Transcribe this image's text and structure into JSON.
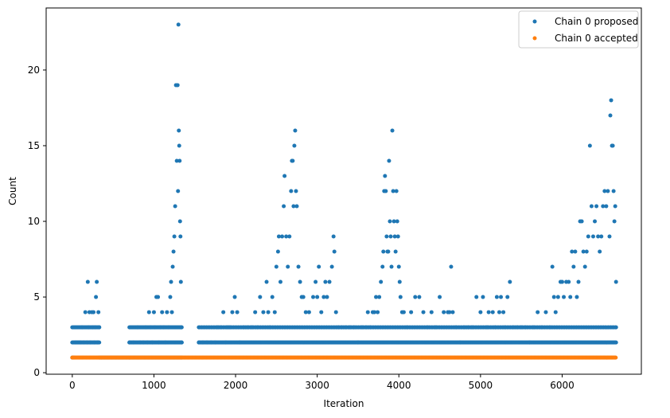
{
  "chart_data": {
    "type": "scatter",
    "xlabel": "Iteration",
    "ylabel": "Count",
    "xlim": [
      -320,
      6970
    ],
    "ylim": [
      -0.1,
      24.1
    ],
    "xticks": [
      0,
      1000,
      2000,
      3000,
      4000,
      5000,
      6000
    ],
    "yticks": [
      0,
      5,
      10,
      15,
      20
    ],
    "grid": false,
    "legend_position": "top-right",
    "series": [
      {
        "name": "Chain 0 proposed",
        "color": "#1f77b4",
        "points": [
          [
            0,
            1
          ],
          [
            20,
            1
          ],
          [
            40,
            2
          ],
          [
            60,
            2
          ],
          [
            80,
            2
          ],
          [
            100,
            2
          ],
          [
            120,
            3
          ],
          [
            140,
            2
          ],
          [
            160,
            4
          ],
          [
            180,
            2
          ],
          [
            190,
            6
          ],
          [
            200,
            3
          ],
          [
            210,
            4
          ],
          [
            220,
            2
          ],
          [
            240,
            4
          ],
          [
            250,
            3
          ],
          [
            260,
            4
          ],
          [
            270,
            2
          ],
          [
            280,
            3
          ],
          [
            290,
            5
          ],
          [
            300,
            6
          ],
          [
            310,
            2
          ],
          [
            320,
            4
          ],
          [
            330,
            3
          ],
          [
            700,
            2
          ],
          [
            750,
            2
          ],
          [
            800,
            3
          ],
          [
            830,
            2
          ],
          [
            870,
            2
          ],
          [
            900,
            3
          ],
          [
            920,
            2
          ],
          [
            940,
            4
          ],
          [
            960,
            3
          ],
          [
            980,
            2
          ],
          [
            1000,
            4
          ],
          [
            1010,
            3
          ],
          [
            1030,
            5
          ],
          [
            1050,
            5
          ],
          [
            1060,
            2
          ],
          [
            1080,
            3
          ],
          [
            1100,
            4
          ],
          [
            1120,
            3
          ],
          [
            1140,
            2
          ],
          [
            1160,
            4
          ],
          [
            1180,
            3
          ],
          [
            1200,
            5
          ],
          [
            1210,
            6
          ],
          [
            1220,
            4
          ],
          [
            1230,
            7
          ],
          [
            1240,
            8
          ],
          [
            1250,
            9
          ],
          [
            1260,
            11
          ],
          [
            1270,
            19
          ],
          [
            1280,
            14
          ],
          [
            1290,
            19
          ],
          [
            1295,
            12
          ],
          [
            1300,
            23
          ],
          [
            1305,
            16
          ],
          [
            1310,
            15
          ],
          [
            1315,
            14
          ],
          [
            1320,
            10
          ],
          [
            1325,
            9
          ],
          [
            1330,
            6
          ],
          [
            1335,
            3
          ],
          [
            1340,
            2
          ],
          [
            1550,
            2
          ],
          [
            1600,
            2
          ],
          [
            1650,
            2
          ],
          [
            1700,
            2
          ],
          [
            1750,
            2
          ],
          [
            1780,
            3
          ],
          [
            1820,
            3
          ],
          [
            1850,
            4
          ],
          [
            1880,
            2
          ],
          [
            1900,
            3
          ],
          [
            1930,
            3
          ],
          [
            1960,
            4
          ],
          [
            1990,
            5
          ],
          [
            2020,
            4
          ],
          [
            2050,
            2
          ],
          [
            2100,
            3
          ],
          [
            2150,
            3
          ],
          [
            2200,
            3
          ],
          [
            2240,
            4
          ],
          [
            2270,
            3
          ],
          [
            2300,
            5
          ],
          [
            2340,
            4
          ],
          [
            2380,
            6
          ],
          [
            2400,
            4
          ],
          [
            2420,
            3
          ],
          [
            2450,
            5
          ],
          [
            2480,
            4
          ],
          [
            2500,
            7
          ],
          [
            2520,
            8
          ],
          [
            2530,
            9
          ],
          [
            2550,
            6
          ],
          [
            2570,
            9
          ],
          [
            2590,
            11
          ],
          [
            2600,
            13
          ],
          [
            2620,
            9
          ],
          [
            2640,
            7
          ],
          [
            2660,
            9
          ],
          [
            2680,
            12
          ],
          [
            2690,
            14
          ],
          [
            2700,
            14
          ],
          [
            2710,
            11
          ],
          [
            2720,
            15
          ],
          [
            2730,
            16
          ],
          [
            2740,
            12
          ],
          [
            2750,
            11
          ],
          [
            2770,
            7
          ],
          [
            2790,
            6
          ],
          [
            2810,
            5
          ],
          [
            2830,
            5
          ],
          [
            2860,
            4
          ],
          [
            2900,
            4
          ],
          [
            2950,
            5
          ],
          [
            2980,
            6
          ],
          [
            3000,
            5
          ],
          [
            3020,
            7
          ],
          [
            3050,
            4
          ],
          [
            3080,
            5
          ],
          [
            3100,
            6
          ],
          [
            3120,
            5
          ],
          [
            3150,
            6
          ],
          [
            3180,
            7
          ],
          [
            3200,
            9
          ],
          [
            3210,
            8
          ],
          [
            3230,
            4
          ],
          [
            3260,
            3
          ],
          [
            3300,
            3
          ],
          [
            3350,
            3
          ],
          [
            3400,
            3
          ],
          [
            3450,
            3
          ],
          [
            3500,
            2
          ],
          [
            3550,
            3
          ],
          [
            3600,
            3
          ],
          [
            3620,
            4
          ],
          [
            3650,
            3
          ],
          [
            3680,
            4
          ],
          [
            3700,
            4
          ],
          [
            3720,
            5
          ],
          [
            3740,
            4
          ],
          [
            3760,
            5
          ],
          [
            3780,
            6
          ],
          [
            3800,
            7
          ],
          [
            3810,
            8
          ],
          [
            3820,
            12
          ],
          [
            3830,
            13
          ],
          [
            3840,
            12
          ],
          [
            3850,
            9
          ],
          [
            3860,
            8
          ],
          [
            3870,
            8
          ],
          [
            3880,
            14
          ],
          [
            3890,
            10
          ],
          [
            3900,
            9
          ],
          [
            3910,
            7
          ],
          [
            3920,
            16
          ],
          [
            3930,
            12
          ],
          [
            3940,
            10
          ],
          [
            3950,
            9
          ],
          [
            3960,
            8
          ],
          [
            3970,
            12
          ],
          [
            3980,
            10
          ],
          [
            3990,
            9
          ],
          [
            4000,
            7
          ],
          [
            4010,
            6
          ],
          [
            4020,
            5
          ],
          [
            4040,
            4
          ],
          [
            4060,
            4
          ],
          [
            4100,
            3
          ],
          [
            4150,
            4
          ],
          [
            4200,
            5
          ],
          [
            4250,
            5
          ],
          [
            4300,
            4
          ],
          [
            4350,
            3
          ],
          [
            4400,
            4
          ],
          [
            4450,
            3
          ],
          [
            4500,
            5
          ],
          [
            4550,
            4
          ],
          [
            4600,
            4
          ],
          [
            4620,
            4
          ],
          [
            4640,
            7
          ],
          [
            4660,
            4
          ],
          [
            4700,
            3
          ],
          [
            4750,
            2
          ],
          [
            4800,
            3
          ],
          [
            4850,
            3
          ],
          [
            4900,
            3
          ],
          [
            4950,
            5
          ],
          [
            5000,
            4
          ],
          [
            5030,
            5
          ],
          [
            5080,
            3
          ],
          [
            5100,
            4
          ],
          [
            5150,
            4
          ],
          [
            5180,
            3
          ],
          [
            5200,
            5
          ],
          [
            5230,
            4
          ],
          [
            5250,
            5
          ],
          [
            5280,
            4
          ],
          [
            5300,
            3
          ],
          [
            5330,
            5
          ],
          [
            5360,
            6
          ],
          [
            5400,
            3
          ],
          [
            5450,
            3
          ],
          [
            5500,
            3
          ],
          [
            5550,
            3
          ],
          [
            5600,
            2
          ],
          [
            5650,
            3
          ],
          [
            5700,
            4
          ],
          [
            5750,
            3
          ],
          [
            5800,
            4
          ],
          [
            5850,
            3
          ],
          [
            5880,
            7
          ],
          [
            5900,
            5
          ],
          [
            5920,
            4
          ],
          [
            5950,
            5
          ],
          [
            5980,
            6
          ],
          [
            6000,
            6
          ],
          [
            6020,
            5
          ],
          [
            6050,
            6
          ],
          [
            6080,
            6
          ],
          [
            6100,
            5
          ],
          [
            6120,
            8
          ],
          [
            6140,
            7
          ],
          [
            6160,
            8
          ],
          [
            6180,
            5
          ],
          [
            6200,
            6
          ],
          [
            6220,
            10
          ],
          [
            6240,
            10
          ],
          [
            6260,
            8
          ],
          [
            6280,
            7
          ],
          [
            6300,
            8
          ],
          [
            6320,
            9
          ],
          [
            6340,
            15
          ],
          [
            6360,
            11
          ],
          [
            6380,
            9
          ],
          [
            6400,
            10
          ],
          [
            6420,
            11
          ],
          [
            6440,
            9
          ],
          [
            6460,
            8
          ],
          [
            6480,
            9
          ],
          [
            6500,
            11
          ],
          [
            6520,
            12
          ],
          [
            6540,
            11
          ],
          [
            6560,
            12
          ],
          [
            6580,
            9
          ],
          [
            6590,
            17
          ],
          [
            6600,
            18
          ],
          [
            6610,
            15
          ],
          [
            6620,
            15
          ],
          [
            6630,
            12
          ],
          [
            6640,
            10
          ],
          [
            6650,
            11
          ],
          [
            6660,
            6
          ]
        ],
        "band_x_ranges": [
          [
            0,
            330
          ],
          [
            700,
            1340
          ],
          [
            1550,
            6660
          ]
        ],
        "band_levels": [
          2,
          3
        ]
      },
      {
        "name": "Chain 0 accepted",
        "color": "#ff7f0e",
        "constant_value": 1,
        "x_range": [
          0,
          6660
        ]
      }
    ]
  }
}
